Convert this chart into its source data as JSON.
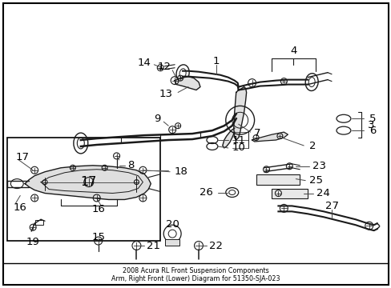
{
  "title_line1": "2008 Acura RL Front Suspension Components",
  "title_line2": "Arm, Right Front (Lower) Diagram for 51350-SJA-023",
  "bg_color": "#ffffff",
  "lc": "#1a1a1a",
  "tc": "#000000",
  "fs": 7.5,
  "fs_big": 9.5,
  "fig_w": 4.89,
  "fig_h": 3.6,
  "dpi": 100
}
